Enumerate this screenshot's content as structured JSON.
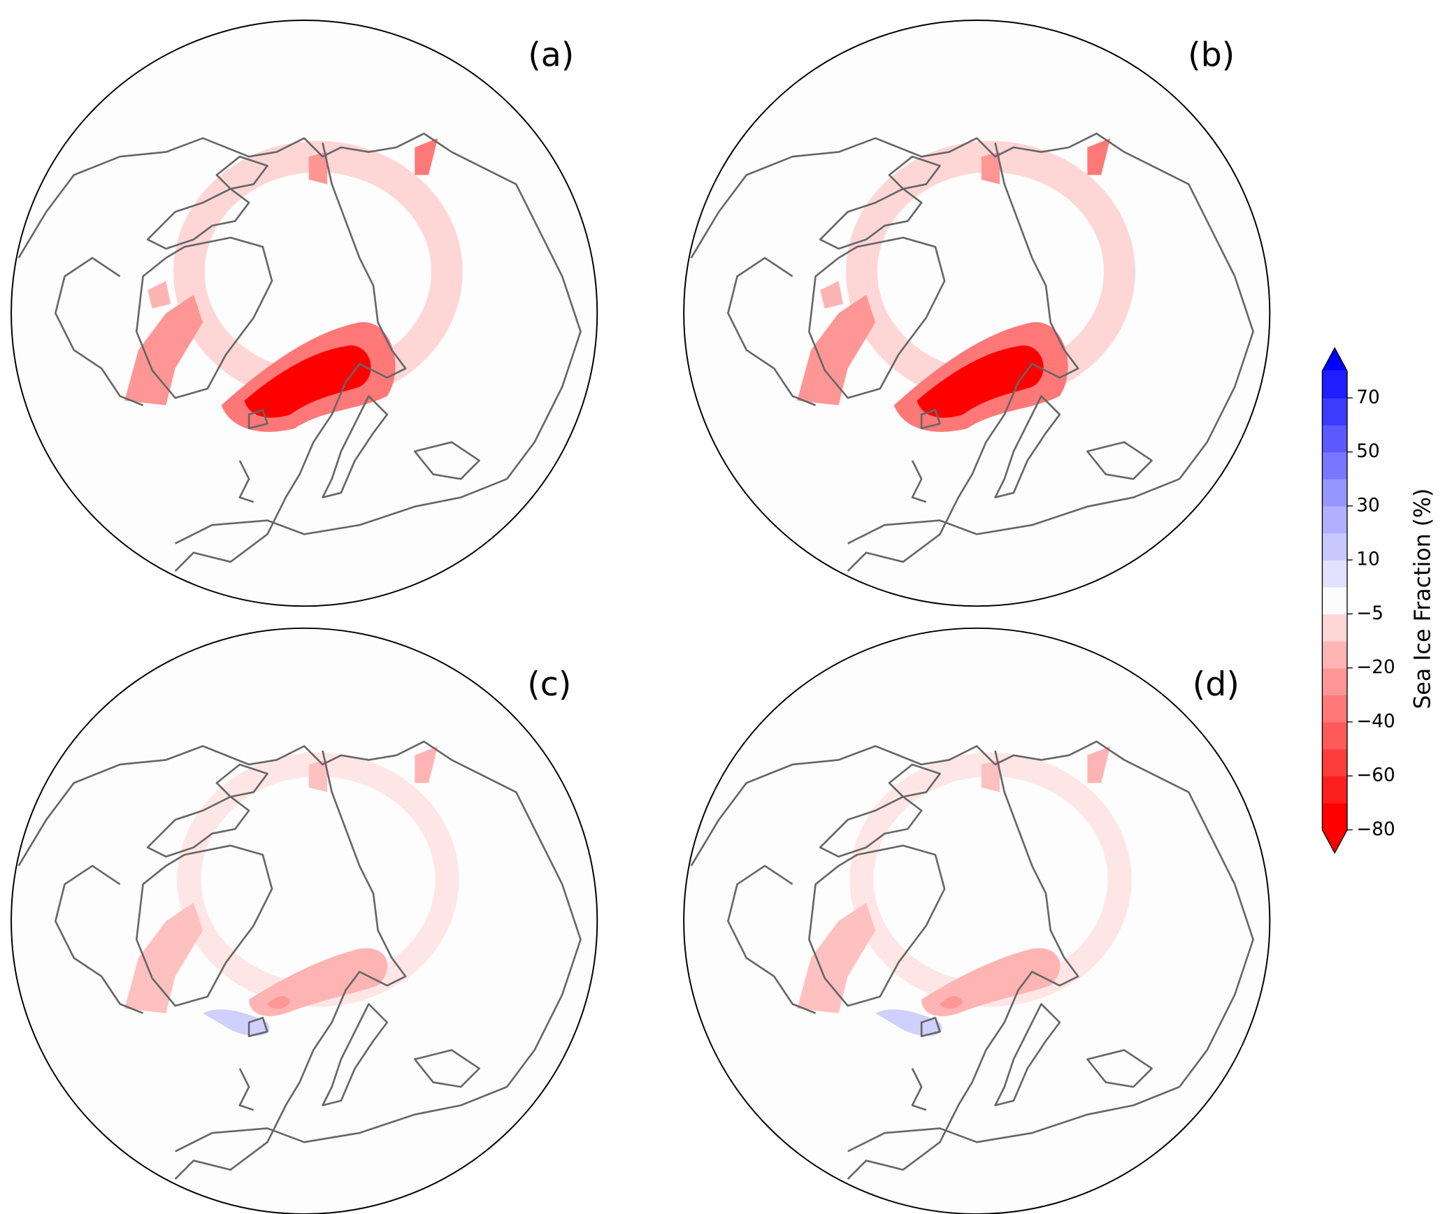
{
  "panels": [
    {
      "label": "(a)"
    },
    {
      "label": "(b)"
    },
    {
      "label": "(c)"
    },
    {
      "label": "(d)"
    }
  ],
  "colorbar": {
    "label": "Sea Ice Fraction (%)",
    "boundaries": [
      -80,
      -70,
      -60,
      -50,
      -40,
      -30,
      -20,
      -10,
      -5,
      5,
      10,
      20,
      30,
      40,
      50,
      60,
      70,
      80
    ],
    "colors": [
      "#ff0000",
      "#ff1e1e",
      "#ff3c3c",
      "#ff5a5a",
      "#ff7878",
      "#ff9696",
      "#ffb4b4",
      "#ffd6d6",
      "#fcfcfc",
      "#e2e2ff",
      "#c8c8ff",
      "#b0b0ff",
      "#9696ff",
      "#7878ff",
      "#5a5aff",
      "#3c3cff",
      "#1e1eff"
    ],
    "extend_colors": [
      "#ff0000",
      "#0000ff"
    ],
    "ticks": [
      {
        "value": -80,
        "label": "−80"
      },
      {
        "value": -60,
        "label": "−60"
      },
      {
        "value": -40,
        "label": "−40"
      },
      {
        "value": -20,
        "label": "−20"
      },
      {
        "value": -5,
        "label": "−5"
      },
      10,
      30,
      50,
      70
    ]
  }
}
